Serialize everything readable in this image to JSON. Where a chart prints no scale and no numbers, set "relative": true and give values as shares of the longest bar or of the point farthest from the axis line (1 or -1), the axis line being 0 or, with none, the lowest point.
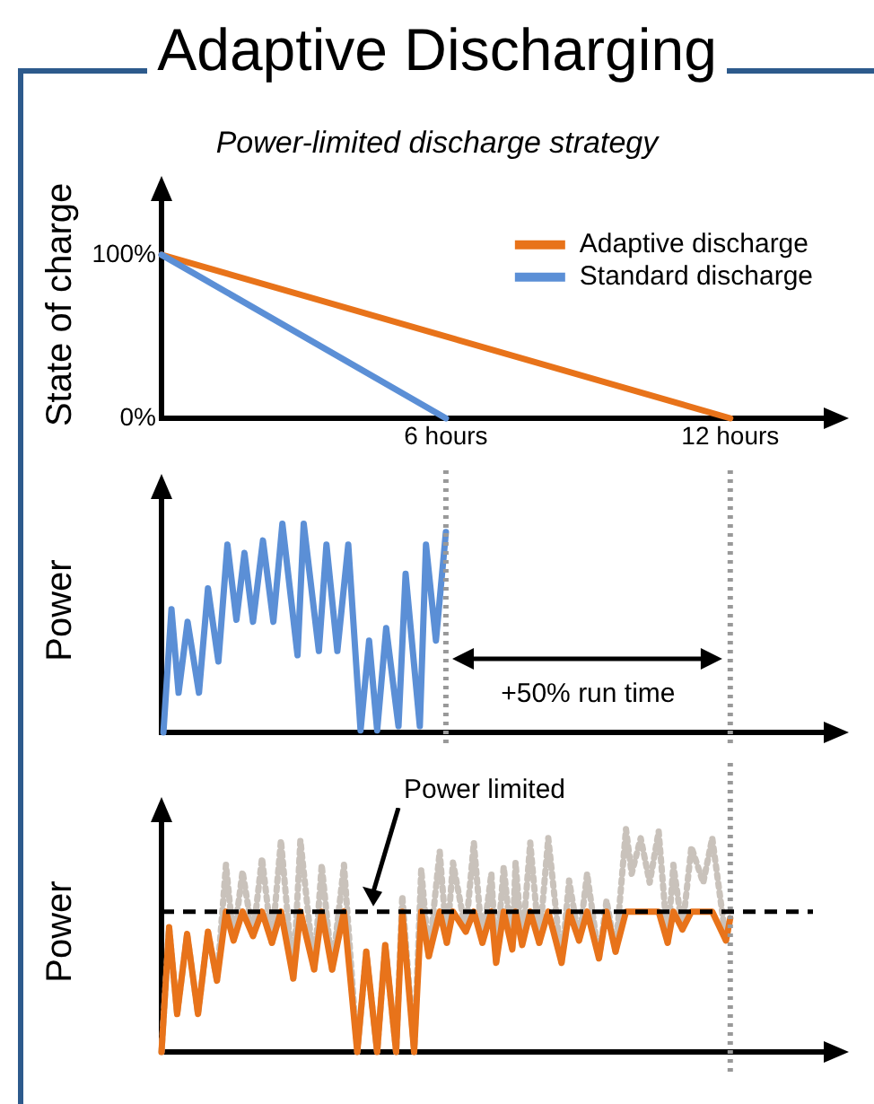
{
  "chart_data": [
    {
      "type": "line",
      "title": "Adaptive Discharging",
      "subtitle": "Power-limited discharge strategy",
      "ylabel": "State of charge",
      "legend": "top right",
      "marker": "none",
      "grid": false,
      "xlim": [
        0,
        14.2
      ],
      "xticks": [
        {
          "value": 6,
          "label": "6 hours"
        },
        {
          "value": 12,
          "label": "12 hours"
        }
      ],
      "ylim": [
        0,
        139
      ],
      "yticks": [
        {
          "value": 0,
          "label": "0%"
        },
        {
          "value": 100,
          "label": "100%"
        }
      ],
      "series": [
        {
          "name": "Adaptive discharge",
          "color": "#e8731a",
          "x": [
            0,
            12
          ],
          "values": [
            100,
            0
          ]
        },
        {
          "name": "Standard discharge",
          "color": "#5b8fd6",
          "x": [
            0,
            6
          ],
          "values": [
            100,
            0
          ]
        }
      ]
    },
    {
      "type": "line",
      "ylabel": "Power",
      "relative": true,
      "marker": "none",
      "grid": false,
      "xlim": [
        0,
        14.2
      ],
      "annotations": [
        "+50% run time"
      ],
      "ref_lines": [
        {
          "axis": "x",
          "value": 6,
          "color": "#999999",
          "line_style": "dotted"
        },
        {
          "axis": "x",
          "value": 12,
          "color": "#999999",
          "line_style": "dotted"
        }
      ],
      "series": [
        {
          "color": "#5b8fd6",
          "x": [
            0.04,
            0.21,
            0.36,
            0.55,
            0.79,
            0.98,
            1.2,
            1.39,
            1.58,
            1.75,
            1.93,
            2.14,
            2.36,
            2.55,
            2.87,
            3.0,
            3.32,
            3.48,
            3.71,
            3.94,
            4.2,
            4.38,
            4.55,
            4.74,
            5.0,
            5.15,
            5.45,
            5.58,
            5.79,
            6.0
          ],
          "values": [
            0,
            0.59,
            0.19,
            0.53,
            0.19,
            0.69,
            0.34,
            0.9,
            0.54,
            0.86,
            0.53,
            0.92,
            0.53,
            1.0,
            0.37,
            1.0,
            0.39,
            0.9,
            0.39,
            0.9,
            0.01,
            0.44,
            0.01,
            0.5,
            0.03,
            0.76,
            0.03,
            0.9,
            0.44,
            0.96
          ]
        }
      ]
    },
    {
      "type": "line",
      "ylabel": "Power",
      "relative": true,
      "marker": "none",
      "grid": false,
      "xlim": [
        0,
        14.2
      ],
      "ref_lines": [
        {
          "axis": "x",
          "value": 12,
          "color": "#999999",
          "line_style": "dotted"
        },
        {
          "axis": "y",
          "value": 0.63,
          "label": "Power limited",
          "color": "#000000",
          "line_style": "dashed"
        }
      ],
      "x": [
        0,
        0.16,
        0.33,
        0.54,
        0.77,
        0.98,
        1.17,
        1.36,
        1.52,
        1.71,
        1.93,
        2.12,
        2.33,
        2.52,
        2.78,
        2.93,
        3.22,
        3.38,
        3.6,
        3.85,
        4.13,
        4.32,
        4.55,
        4.72,
        4.95,
        5.08,
        5.33,
        5.48,
        5.64,
        5.87,
        6.02,
        6.15,
        6.42,
        6.59,
        6.77,
        6.96,
        7.06,
        7.22,
        7.4,
        7.47,
        7.61,
        7.78,
        7.97,
        8.16,
        8.44,
        8.6,
        8.81,
        8.98,
        9.23,
        9.39,
        9.58,
        9.8,
        9.92,
        10.11,
        10.3,
        10.49,
        10.68,
        10.8,
        10.99,
        11.18,
        11.43,
        11.62,
        11.91,
        12.0
      ],
      "series": [
        {
          "color": "#c9c2bb",
          "line_style": "dotted",
          "values": [
            0,
            0.56,
            0.17,
            0.53,
            0.17,
            0.54,
            0.32,
            0.84,
            0.5,
            0.81,
            0.52,
            0.87,
            0.49,
            0.95,
            0.33,
            0.95,
            0.37,
            0.84,
            0.37,
            0.84,
            0,
            0.45,
            0,
            0.48,
            0,
            0.7,
            0,
            0.82,
            0.43,
            0.9,
            0.49,
            0.85,
            0.54,
            0.94,
            0.49,
            0.8,
            0.4,
            0.83,
            0.46,
            0.85,
            0.48,
            0.94,
            0.49,
            0.96,
            0.4,
            0.77,
            0.5,
            0.8,
            0.42,
            0.68,
            0.45,
            1.0,
            0.8,
            0.96,
            0.76,
            0.99,
            0.49,
            0.84,
            0.55,
            0.92,
            0.76,
            0.96,
            0.5,
            0.6
          ]
        },
        {
          "color": "#e8731a",
          "values": [
            0,
            0.56,
            0.17,
            0.53,
            0.17,
            0.54,
            0.32,
            0.63,
            0.5,
            0.63,
            0.52,
            0.63,
            0.49,
            0.63,
            0.33,
            0.63,
            0.37,
            0.63,
            0.37,
            0.63,
            0,
            0.45,
            0,
            0.48,
            0,
            0.63,
            0,
            0.63,
            0.43,
            0.63,
            0.49,
            0.63,
            0.54,
            0.63,
            0.49,
            0.63,
            0.4,
            0.63,
            0.46,
            0.63,
            0.48,
            0.63,
            0.49,
            0.63,
            0.4,
            0.63,
            0.5,
            0.63,
            0.42,
            0.63,
            0.45,
            0.63,
            0.63,
            0.63,
            0.63,
            0.63,
            0.49,
            0.63,
            0.55,
            0.63,
            0.63,
            0.63,
            0.5,
            0.6
          ]
        }
      ]
    }
  ]
}
